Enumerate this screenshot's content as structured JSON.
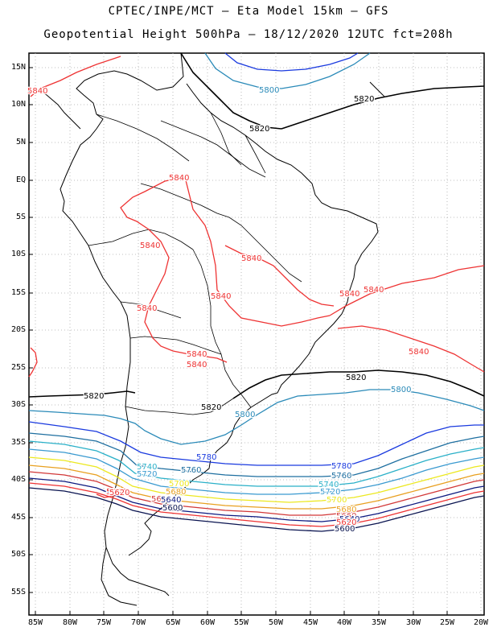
{
  "title": {
    "line1": "CPTEC/INPE/MCT –  Eta Model 15km – GFS",
    "line2": "Geopotential Height 500hPa – 18/12/2020 12UTC fct=208h"
  },
  "axes": {
    "lat_labels": [
      "15N",
      "10N",
      "5N",
      "EQ",
      "5S",
      "10S",
      "15S",
      "20S",
      "25S",
      "30S",
      "35S",
      "40S",
      "45S",
      "50S",
      "55S"
    ],
    "lon_labels": [
      "85W",
      "80W",
      "75W",
      "70W",
      "65W",
      "60W",
      "55W",
      "50W",
      "45W",
      "40W",
      "35W",
      "30W",
      "25W",
      "20W"
    ]
  },
  "contours": [
    {
      "value": "5840",
      "color": "#ee3333"
    },
    {
      "value": "5820",
      "color": "#000000"
    },
    {
      "value": "5800",
      "color": "#2a8ab8"
    },
    {
      "value": "5780",
      "color": "#1a3adf"
    },
    {
      "value": "5760",
      "color": "#1e6fa0"
    },
    {
      "value": "5740",
      "color": "#2ab0c8"
    },
    {
      "value": "5720",
      "color": "#3a9ad0"
    },
    {
      "value": "5700",
      "color": "#ece820"
    },
    {
      "value": "5680",
      "color": "#e8a020"
    },
    {
      "value": "5660",
      "color": "#d23838"
    },
    {
      "value": "5640",
      "color": "#0d1a80"
    },
    {
      "value": "5620",
      "color": "#ee3333"
    },
    {
      "value": "5600",
      "color": "#0a1450"
    }
  ],
  "contour_labels": [
    {
      "text": "5840",
      "color": "#ee3333"
    },
    {
      "text": "5840",
      "color": "#ee3333"
    },
    {
      "text": "5840",
      "color": "#ee3333"
    },
    {
      "text": "5840",
      "color": "#ee3333"
    },
    {
      "text": "5840",
      "color": "#ee3333"
    },
    {
      "text": "5840",
      "color": "#ee3333"
    },
    {
      "text": "5840",
      "color": "#ee3333"
    },
    {
      "text": "5840",
      "color": "#ee3333"
    },
    {
      "text": "5840",
      "color": "#ee3333"
    },
    {
      "text": "5840",
      "color": "#ee3333"
    },
    {
      "text": "5840",
      "color": "#ee3333"
    },
    {
      "text": "5840",
      "color": "#ee3333"
    },
    {
      "text": "5820",
      "color": "#000000"
    },
    {
      "text": "5820",
      "color": "#000000"
    },
    {
      "text": "5820",
      "color": "#000000"
    },
    {
      "text": "5820",
      "color": "#000000"
    },
    {
      "text": "5820",
      "color": "#000000"
    },
    {
      "text": "5800",
      "color": "#2a8ab8"
    },
    {
      "text": "5800",
      "color": "#2a8ab8"
    },
    {
      "text": "5800",
      "color": "#2a8ab8"
    },
    {
      "text": "5780",
      "color": "#1a3adf"
    },
    {
      "text": "5780",
      "color": "#1a3adf"
    },
    {
      "text": "5760",
      "color": "#1e6fa0"
    },
    {
      "text": "5760",
      "color": "#1e6fa0"
    },
    {
      "text": "5740",
      "color": "#2ab0c8"
    },
    {
      "text": "5740",
      "color": "#2ab0c8"
    },
    {
      "text": "5720",
      "color": "#3a9ad0"
    },
    {
      "text": "5720",
      "color": "#3a9ad0"
    },
    {
      "text": "5700",
      "color": "#ece820"
    },
    {
      "text": "5700",
      "color": "#ece820"
    },
    {
      "text": "5680",
      "color": "#e8a020"
    },
    {
      "text": "5680",
      "color": "#e8a020"
    },
    {
      "text": "5660",
      "color": "#d23838"
    },
    {
      "text": "5660",
      "color": "#d23838"
    },
    {
      "text": "5640",
      "color": "#0d1a80"
    },
    {
      "text": "5640",
      "color": "#0d1a80"
    },
    {
      "text": "5620",
      "color": "#ee3333"
    },
    {
      "text": "5620",
      "color": "#ee3333"
    },
    {
      "text": "5600",
      "color": "#0a1450"
    },
    {
      "text": "5600",
      "color": "#0a1450"
    }
  ]
}
